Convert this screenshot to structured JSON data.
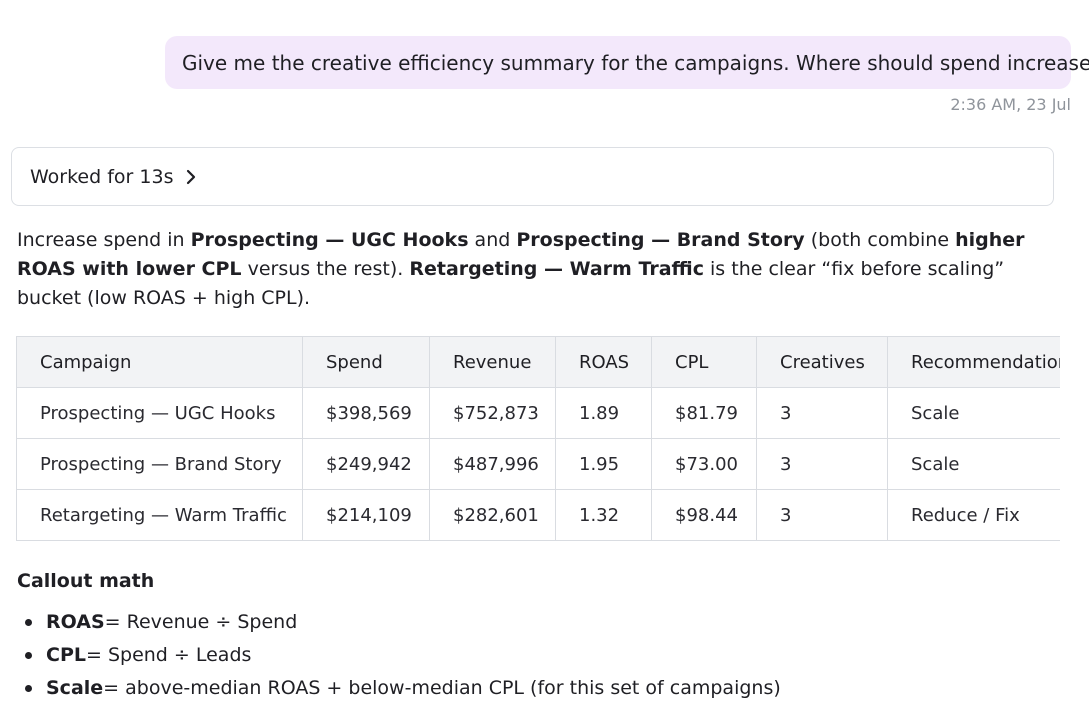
{
  "user_message": {
    "text": "Give me the creative efficiency summary for the campaigns. Where should spend increase?",
    "timestamp": "2:36 AM, 23 Jul"
  },
  "worked": {
    "label": "Worked for 13s",
    "icon": "chevron-right-icon"
  },
  "answer": {
    "p1": "Increase spend in ",
    "b1": "Prospecting — UGC Hooks",
    "p2": " and ",
    "b2": "Prospecting — Brand Story",
    "p3": " (both combine ",
    "b3": "higher ROAS with lower CPL",
    "p4": " versus the rest). ",
    "b4": "Retargeting — Warm Traffic",
    "p5": " is the clear “fix before scaling” bucket (low ROAS + high CPL)."
  },
  "table": {
    "headers": [
      "Campaign",
      "Spend",
      "Revenue",
      "ROAS",
      "CPL",
      "Creatives",
      "Recommendation"
    ],
    "rows": [
      [
        "Prospecting — UGC Hooks",
        "$398,569",
        "$752,873",
        "1.89",
        "$81.79",
        "3",
        "Scale"
      ],
      [
        "Prospecting — Brand Story",
        "$249,942",
        "$487,996",
        "1.95",
        "$73.00",
        "3",
        "Scale"
      ],
      [
        "Retargeting — Warm Traffic",
        "$214,109",
        "$282,601",
        "1.32",
        "$98.44",
        "3",
        "Reduce / Fix"
      ]
    ]
  },
  "callout": {
    "title": "Callout math",
    "items": [
      {
        "term": "ROAS",
        "text": " = Revenue ÷ Spend"
      },
      {
        "term": "CPL",
        "text": " = Spend ÷ Leads"
      },
      {
        "term": "Scale",
        "text": " = above-median ROAS + below-median CPL (for this set of campaigns)"
      }
    ]
  }
}
